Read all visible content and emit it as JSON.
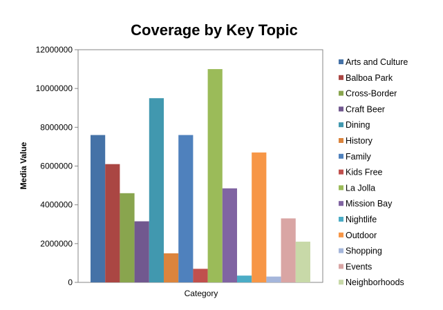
{
  "chart_data": {
    "type": "bar",
    "title": "Coverage by Key Topic",
    "xlabel": "Category",
    "ylabel": "Media Value",
    "categories": [
      "Category"
    ],
    "ylim": [
      0,
      12000000
    ],
    "yticks": [
      0,
      2000000,
      4000000,
      6000000,
      8000000,
      10000000,
      12000000
    ],
    "grid": false,
    "legend_position": "right",
    "series": [
      {
        "name": "Arts and Culture",
        "values": [
          7600000
        ],
        "color": "#4572A7"
      },
      {
        "name": "Balboa Park",
        "values": [
          6100000
        ],
        "color": "#AA4643"
      },
      {
        "name": "Cross-Border",
        "values": [
          4600000
        ],
        "color": "#89A54E"
      },
      {
        "name": "Craft Beer",
        "values": [
          3150000
        ],
        "color": "#71588F"
      },
      {
        "name": "Dining",
        "values": [
          9500000
        ],
        "color": "#4198AF"
      },
      {
        "name": "History",
        "values": [
          1500000
        ],
        "color": "#DB843D"
      },
      {
        "name": "Family",
        "values": [
          7600000
        ],
        "color": "#4F81BD"
      },
      {
        "name": "Kids Free",
        "values": [
          700000
        ],
        "color": "#C0504D"
      },
      {
        "name": "La Jolla",
        "values": [
          11000000
        ],
        "color": "#9BBB59"
      },
      {
        "name": "Mission Bay",
        "values": [
          4850000
        ],
        "color": "#8064A2"
      },
      {
        "name": "Nightlife",
        "values": [
          350000
        ],
        "color": "#4BACC6"
      },
      {
        "name": "Outdoor",
        "values": [
          6700000
        ],
        "color": "#F79646"
      },
      {
        "name": "Shopping",
        "values": [
          300000
        ],
        "color": "#A5B6DB"
      },
      {
        "name": "Events",
        "values": [
          3300000
        ],
        "color": "#D9A5A4"
      },
      {
        "name": "Neighborhoods",
        "values": [
          2100000
        ],
        "color": "#C8D9A8"
      }
    ]
  }
}
